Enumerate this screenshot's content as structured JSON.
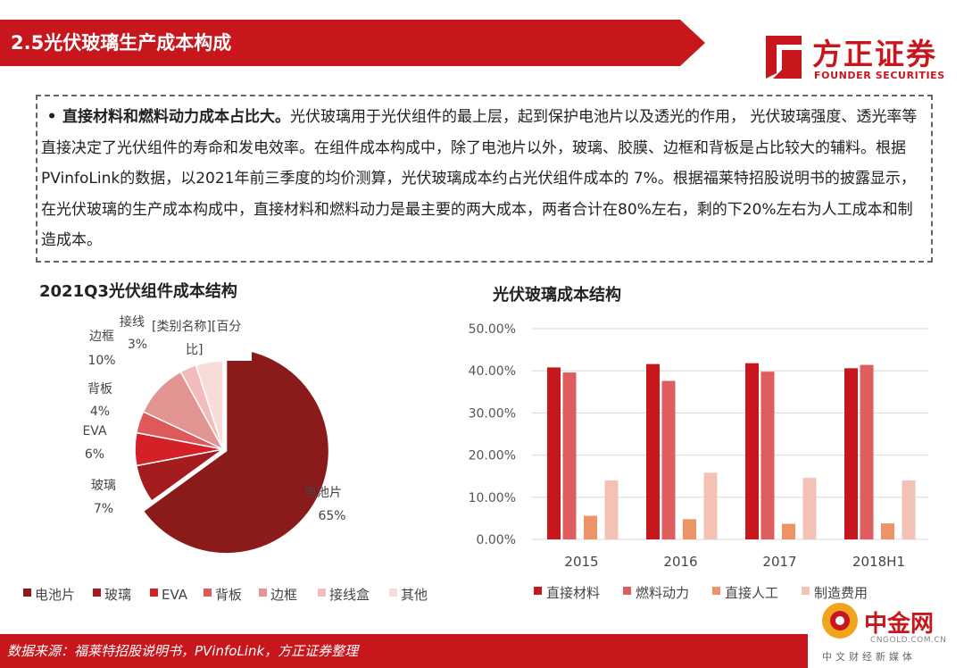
{
  "header": {
    "title": "2.5光伏玻璃生产成本构成",
    "logo_cn": "方正证券",
    "logo_en": "FOUNDER SECURITIES"
  },
  "summary": {
    "bullet": "•",
    "lead": "直接材料和燃料动力成本占比大。",
    "body": "光伏玻璃用于光伏组件的最上层，起到保护电池片以及透光的作用， 光伏玻璃强度、透光率等直接决定了光伏组件的寿命和发电效率。在组件成本构成中，除了电池片以外，玻璃、胶膜、边框和背板是占比较大的辅料。根据PVinfoLink的数据，以2021年前三季度的均价测算，光伏玻璃成本约占光伏组件成本的 7%。根据福莱特招股说明书的披露显示，在光伏玻璃的生产成本构成中，直接材料和燃料动力是最主要的两大成本，两者合计在80%左右，剩的下20%左右为人工成本和制造成本。"
  },
  "chart_data": [
    {
      "type": "pie",
      "title": "2021Q3光伏组件成本结构",
      "slices": [
        {
          "name": "电池片",
          "label": "电池片",
          "pct_label": "65%",
          "value": 65,
          "color": "#8b1a1a"
        },
        {
          "name": "玻璃",
          "label": "玻璃",
          "pct_label": "7%",
          "value": 7,
          "color": "#a51c1f"
        },
        {
          "name": "EVA",
          "label": "EVA",
          "pct_label": "6%",
          "value": 6,
          "color": "#d42127"
        },
        {
          "name": "背板",
          "label": "背板",
          "pct_label": "4%",
          "value": 4,
          "color": "#de5a5a"
        },
        {
          "name": "边框",
          "label": "边框",
          "pct_label": "10%",
          "value": 10,
          "color": "#e39594"
        },
        {
          "name": "接线盒",
          "label": "接线",
          "pct_label": "3%",
          "value": 3,
          "color": "#f2bcbc"
        },
        {
          "name": "其他",
          "label": "",
          "pct_label": "",
          "value": 5,
          "color": "#f7dcd9"
        }
      ],
      "callout_text": [
        "[类别名称][百分",
        "比]"
      ],
      "legend": [
        "电池片",
        "玻璃",
        "EVA",
        "背板",
        "边框",
        "接线盒",
        "其他"
      ],
      "legend_position": "bottom"
    },
    {
      "type": "bar",
      "title": "光伏玻璃成本结构",
      "categories": [
        "2015",
        "2016",
        "2017",
        "2018H1"
      ],
      "series": [
        {
          "name": "直接材料",
          "color": "#c8161d",
          "values": [
            40.8,
            41.6,
            41.8,
            40.6
          ]
        },
        {
          "name": "燃料动力",
          "color": "#de5e60",
          "values": [
            39.6,
            37.6,
            39.8,
            41.4
          ]
        },
        {
          "name": "直接人工",
          "color": "#ec9466",
          "values": [
            5.6,
            4.8,
            3.7,
            3.8
          ]
        },
        {
          "name": "制造费用",
          "color": "#f3c2b4",
          "values": [
            14.0,
            15.8,
            14.6,
            14.0
          ]
        }
      ],
      "ylim": [
        0,
        50
      ],
      "yticks": [
        "0.00%",
        "10.00%",
        "20.00%",
        "30.00%",
        "40.00%",
        "50.00%"
      ],
      "grid": true,
      "legend_position": "bottom"
    }
  ],
  "footer": {
    "source": "数据来源：福莱特招股说明书，PVinfoLink，方正证券整理"
  },
  "watermark": {
    "cn": "中金网",
    "en": "CNGOLD.COM.CN",
    "tag": "中文财经新媒体"
  }
}
